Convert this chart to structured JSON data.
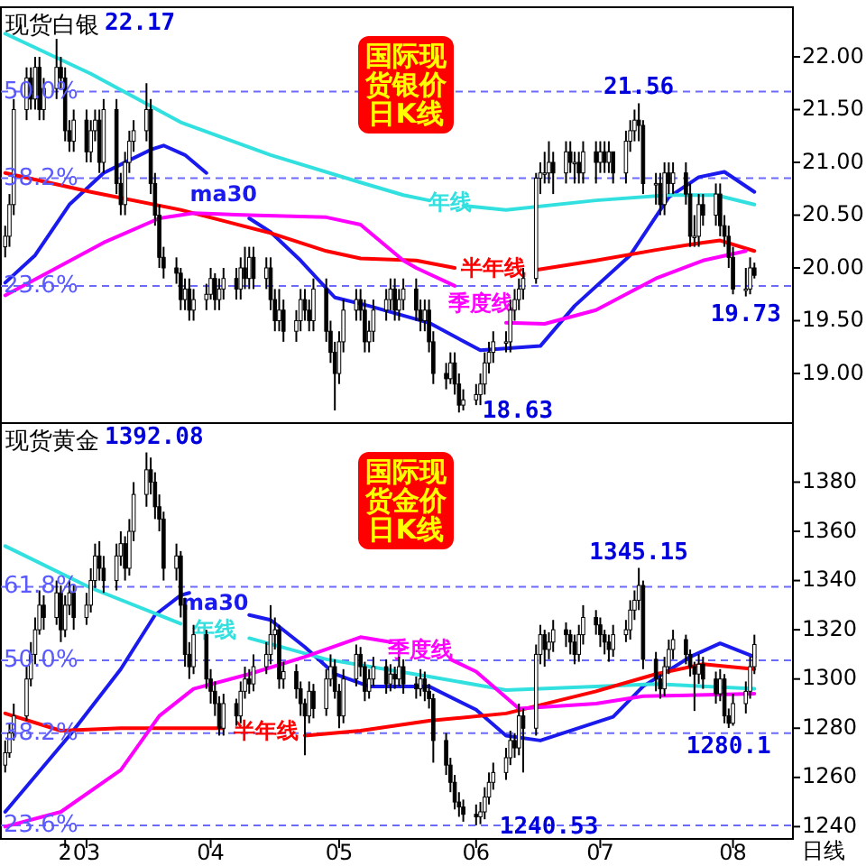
{
  "chart_data": [
    {
      "type": "candlestick",
      "title": "现货白银",
      "subtitle": "国际现货银价日K线",
      "tick_labels": "y",
      "x": [
        "--02-12",
        "--02-13",
        "--02-14",
        "--02-17",
        "--02-18",
        "--02-19",
        "--02-20",
        "--02-21",
        "--02-24",
        "--02-25",
        "--02-26",
        "--02-27",
        "--02-28",
        "--03-03",
        "--03-04",
        "--03-05",
        "--03-06",
        "--03-07",
        "--03-10",
        "--03-11",
        "--03-12",
        "--03-13",
        "--03-14",
        "--03-17",
        "--03-18",
        "--03-19",
        "--03-20",
        "--03-21",
        "--03-24",
        "--03-25",
        "--03-26",
        "--03-27",
        "--03-28",
        "--03-31",
        "--04-01",
        "--04-02",
        "--04-03",
        "--04-04",
        "--04-07",
        "--04-08",
        "--04-09",
        "--04-10",
        "--04-11",
        "--04-14",
        "--04-15",
        "--04-16",
        "--04-17",
        "--04-18",
        "--04-21",
        "--04-22",
        "--04-23",
        "--04-24",
        "--04-25",
        "--04-28",
        "--04-29",
        "--04-30",
        "--05-01",
        "--05-02",
        "--05-05",
        "--05-06",
        "--05-07",
        "--05-08",
        "--05-09",
        "--05-12",
        "--05-13",
        "--05-14",
        "--05-15",
        "--05-16",
        "--05-19",
        "--05-20",
        "--05-21",
        "--05-22",
        "--05-23",
        "--05-26",
        "--05-27",
        "--05-28",
        "--05-29",
        "--05-30",
        "--06-02",
        "--06-03",
        "--06-04",
        "--06-05",
        "--06-06",
        "--06-09",
        "--06-10",
        "--06-11",
        "--06-12",
        "--06-13",
        "--06-16",
        "--06-17",
        "--06-18",
        "--06-19",
        "--06-20",
        "--06-23",
        "--06-24",
        "--06-25",
        "--06-26",
        "--06-27",
        "--06-30",
        "--07-01",
        "--07-02",
        "--07-03",
        "--07-04",
        "--07-07",
        "--07-08",
        "--07-09",
        "--07-10",
        "--07-11",
        "--07-14",
        "--07-15",
        "--07-16",
        "--07-17",
        "--07-18",
        "--07-21",
        "--07-22",
        "--07-23",
        "--07-24",
        "--07-25",
        "--07-28",
        "--07-29",
        "--07-30",
        "--07-31",
        "--08-01",
        "--08-04",
        "--08-05",
        "--08-06"
      ],
      "ohlc": [
        [
          20.2,
          20.4,
          20.1,
          20.3
        ],
        [
          20.3,
          20.7,
          20.2,
          20.6
        ],
        [
          20.6,
          21.6,
          20.5,
          21.5
        ],
        [
          21.5,
          21.9,
          21.4,
          21.8
        ],
        [
          21.8,
          21.9,
          21.5,
          21.6
        ],
        [
          21.6,
          22.0,
          21.5,
          21.9
        ],
        [
          21.9,
          22.0,
          21.4,
          21.5
        ],
        [
          21.5,
          21.8,
          21.4,
          21.7
        ],
        [
          21.7,
          22.17,
          21.6,
          21.9
        ],
        [
          21.9,
          22.0,
          21.7,
          21.8
        ],
        [
          21.8,
          21.9,
          21.2,
          21.3
        ],
        [
          21.3,
          21.4,
          21.1,
          21.2
        ],
        [
          21.2,
          21.5,
          21.1,
          21.4
        ],
        [
          21.4,
          21.5,
          21.0,
          21.1
        ],
        [
          21.1,
          21.4,
          21.0,
          21.3
        ],
        [
          21.3,
          21.5,
          21.2,
          21.4
        ],
        [
          21.4,
          21.5,
          20.9,
          21.0
        ],
        [
          21.0,
          21.6,
          20.9,
          21.5
        ],
        [
          21.5,
          21.6,
          20.7,
          20.8
        ],
        [
          20.8,
          20.9,
          20.5,
          20.6
        ],
        [
          20.6,
          21.1,
          20.5,
          21.0
        ],
        [
          21.0,
          21.3,
          20.9,
          21.2
        ],
        [
          21.2,
          21.4,
          21.1,
          21.3
        ],
        [
          21.3,
          21.75,
          21.2,
          21.5
        ],
        [
          21.5,
          21.6,
          20.7,
          20.8
        ],
        [
          20.8,
          20.9,
          20.4,
          20.5
        ],
        [
          20.5,
          20.6,
          20.0,
          20.1
        ],
        [
          20.1,
          20.2,
          19.9,
          20.0
        ],
        [
          20.0,
          20.1,
          19.85,
          19.95
        ],
        [
          19.95,
          20.0,
          19.6,
          19.7
        ],
        [
          19.7,
          19.9,
          19.6,
          19.8
        ],
        [
          19.8,
          19.9,
          19.5,
          19.6
        ],
        [
          19.6,
          19.8,
          19.5,
          19.7
        ],
        [
          19.7,
          19.85,
          19.6,
          19.75
        ],
        [
          19.75,
          20.0,
          19.7,
          19.9
        ],
        [
          19.9,
          19.95,
          19.6,
          19.7
        ],
        [
          19.7,
          19.9,
          19.6,
          19.8
        ],
        [
          19.8,
          20.0,
          19.7,
          19.9
        ],
        [
          19.9,
          20.0,
          19.7,
          19.8
        ],
        [
          19.8,
          20.1,
          19.7,
          20.0
        ],
        [
          20.0,
          20.2,
          19.8,
          19.9
        ],
        [
          19.9,
          20.2,
          19.8,
          20.1
        ],
        [
          20.1,
          20.2,
          19.8,
          19.9
        ],
        [
          19.9,
          20.1,
          19.8,
          20.0
        ],
        [
          20.0,
          20.1,
          19.6,
          19.7
        ],
        [
          19.7,
          19.8,
          19.4,
          19.5
        ],
        [
          19.5,
          19.8,
          19.4,
          19.6
        ],
        [
          19.6,
          19.7,
          19.3,
          19.4
        ],
        [
          19.4,
          19.6,
          19.3,
          19.5
        ],
        [
          19.5,
          19.8,
          19.4,
          19.7
        ],
        [
          19.7,
          19.8,
          19.5,
          19.6
        ],
        [
          19.6,
          19.7,
          19.4,
          19.5
        ],
        [
          19.5,
          19.9,
          19.4,
          19.8
        ],
        [
          19.8,
          19.9,
          19.3,
          19.4
        ],
        [
          19.4,
          19.5,
          19.1,
          19.2
        ],
        [
          19.2,
          19.3,
          18.65,
          19.0
        ],
        [
          19.0,
          19.4,
          18.9,
          19.3
        ],
        [
          19.3,
          19.7,
          19.2,
          19.6
        ],
        [
          19.6,
          19.8,
          19.5,
          19.7
        ],
        [
          19.7,
          19.8,
          19.5,
          19.6
        ],
        [
          19.6,
          19.7,
          19.2,
          19.3
        ],
        [
          19.3,
          19.5,
          19.2,
          19.4
        ],
        [
          19.4,
          19.7,
          19.3,
          19.6
        ],
        [
          19.6,
          19.8,
          19.5,
          19.7
        ],
        [
          19.7,
          19.9,
          19.6,
          19.8
        ],
        [
          19.8,
          19.9,
          19.5,
          19.6
        ],
        [
          19.6,
          19.8,
          19.5,
          19.7
        ],
        [
          19.7,
          19.9,
          19.6,
          19.8
        ],
        [
          19.8,
          19.9,
          19.5,
          19.6
        ],
        [
          19.6,
          19.7,
          19.4,
          19.5
        ],
        [
          19.5,
          19.7,
          19.4,
          19.6
        ],
        [
          19.6,
          19.7,
          19.2,
          19.3
        ],
        [
          19.3,
          19.4,
          18.9,
          19.0
        ],
        [
          19.0,
          19.1,
          18.85,
          18.95
        ],
        [
          18.95,
          19.2,
          18.9,
          19.1
        ],
        [
          19.1,
          19.2,
          18.8,
          18.9
        ],
        [
          18.9,
          19.0,
          18.63,
          18.7
        ],
        [
          18.7,
          18.85,
          18.65,
          18.75
        ],
        [
          18.75,
          18.9,
          18.7,
          18.8
        ],
        [
          18.8,
          19.0,
          18.7,
          18.9
        ],
        [
          18.9,
          19.2,
          18.8,
          19.1
        ],
        [
          19.1,
          19.3,
          19.0,
          19.2
        ],
        [
          19.2,
          19.4,
          19.1,
          19.3
        ],
        [
          19.3,
          19.4,
          19.2,
          19.3
        ],
        [
          19.3,
          19.7,
          19.2,
          19.6
        ],
        [
          19.6,
          19.8,
          19.5,
          19.7
        ],
        [
          19.7,
          19.9,
          19.6,
          19.8
        ],
        [
          19.8,
          20.0,
          19.7,
          19.9
        ],
        [
          19.9,
          20.9,
          19.85,
          20.85
        ],
        [
          20.85,
          21.0,
          20.7,
          20.9
        ],
        [
          20.9,
          21.1,
          20.8,
          20.9
        ],
        [
          20.9,
          21.2,
          20.8,
          21.0
        ],
        [
          21.0,
          21.1,
          20.7,
          20.9
        ],
        [
          20.9,
          21.2,
          20.8,
          21.1
        ],
        [
          21.1,
          21.2,
          20.9,
          21.0
        ],
        [
          21.0,
          21.1,
          20.8,
          21.0
        ],
        [
          21.0,
          21.1,
          20.8,
          20.9
        ],
        [
          20.9,
          21.2,
          20.8,
          21.1
        ],
        [
          21.1,
          21.2,
          20.8,
          21.0
        ],
        [
          21.0,
          21.2,
          20.9,
          21.1
        ],
        [
          21.1,
          21.2,
          20.9,
          21.0
        ],
        [
          21.0,
          21.2,
          20.9,
          21.1
        ],
        [
          21.1,
          21.1,
          20.8,
          20.9
        ],
        [
          20.9,
          21.3,
          20.8,
          21.2
        ],
        [
          21.2,
          21.4,
          21.1,
          21.3
        ],
        [
          21.3,
          21.5,
          21.2,
          21.4
        ],
        [
          21.4,
          21.56,
          21.2,
          21.35
        ],
        [
          21.35,
          21.4,
          20.7,
          20.8
        ],
        [
          20.8,
          20.9,
          20.6,
          20.8
        ],
        [
          20.8,
          20.9,
          20.5,
          20.6
        ],
        [
          20.6,
          21.0,
          20.5,
          20.9
        ],
        [
          20.9,
          21.0,
          20.7,
          20.8
        ],
        [
          20.8,
          21.0,
          20.7,
          20.9
        ],
        [
          20.9,
          21.0,
          20.6,
          20.7
        ],
        [
          20.7,
          20.8,
          20.2,
          20.3
        ],
        [
          20.3,
          20.5,
          20.2,
          20.3
        ],
        [
          20.3,
          20.7,
          20.2,
          20.6
        ],
        [
          20.6,
          20.7,
          20.4,
          20.5
        ],
        [
          20.5,
          20.8,
          20.4,
          20.7
        ],
        [
          20.7,
          20.8,
          20.3,
          20.4
        ],
        [
          20.4,
          20.5,
          20.2,
          20.3
        ],
        [
          20.3,
          20.4,
          20.0,
          20.1
        ],
        [
          20.1,
          20.2,
          19.75,
          19.8
        ],
        [
          19.8,
          20.0,
          19.73,
          19.8
        ],
        [
          19.8,
          20.1,
          19.75,
          20.0
        ],
        [
          20.0,
          20.05,
          19.9,
          19.93
        ]
      ],
      "series": [
        {
          "name": "ma30",
          "type": "line",
          "color": "#1a1aee",
          "x": [
            "--02-12",
            "--02-19",
            "--02-27",
            "--03-07",
            "--03-13",
            "--03-18",
            "--03-21",
            "--03-26",
            "--03-31",
            "--04-04",
            "--04-10",
            "--04-15",
            "--04-22",
            "--04-30",
            "--05-08",
            "--05-22",
            "--06-03",
            "--06-17",
            "--06-25",
            "--07-08",
            "--07-17",
            "--07-24",
            "--07-30",
            "--08-06"
          ],
          "values": [
            19.86,
            20.12,
            20.6,
            20.9,
            21.02,
            21.12,
            21.16,
            21.07,
            20.9,
            null,
            20.47,
            20.34,
            20.07,
            19.72,
            19.64,
            19.48,
            19.22,
            19.26,
            19.64,
            20.12,
            20.67,
            20.86,
            20.91,
            20.72
          ]
        },
        {
          "name": "年线",
          "type": "line",
          "color": "#33e0e0",
          "x": [
            "--02-12",
            "--03-04",
            "--03-25",
            "--04-15",
            "--05-06",
            "--05-16",
            "--05-22",
            "--05-27",
            "--05-30",
            "--06-09",
            "--06-30",
            "--07-17",
            "--07-28",
            "--08-06"
          ],
          "values": [
            22.22,
            21.84,
            21.38,
            21.07,
            20.81,
            20.69,
            20.64,
            null,
            20.59,
            20.55,
            20.64,
            20.69,
            20.69,
            20.6
          ]
        },
        {
          "name": "半年线",
          "type": "line",
          "color": "#ff0000",
          "x": [
            "--02-12",
            "--03-04",
            "--03-25",
            "--04-15",
            "--04-28",
            "--05-06",
            "--05-19",
            "--05-28",
            "--06-06",
            "--06-16",
            "--06-30",
            "--07-14",
            "--07-25",
            "--07-29",
            "--08-06"
          ],
          "values": [
            20.9,
            20.72,
            20.55,
            20.33,
            20.16,
            20.09,
            20.07,
            20.0,
            null,
            19.98,
            20.07,
            20.17,
            20.24,
            20.26,
            20.16
          ]
        },
        {
          "name": "季度线",
          "type": "line",
          "color": "#ff00ff",
          "x": [
            "--02-12",
            "--02-24",
            "--03-07",
            "--03-20",
            "--03-28",
            "--04-10",
            "--04-28",
            "--05-06",
            "--05-16",
            "--05-19",
            "--05-28",
            "--06-03",
            "--06-09",
            "--06-18",
            "--06-30",
            "--07-14",
            "--07-25",
            "--08-04"
          ],
          "values": [
            19.74,
            20.0,
            20.24,
            20.47,
            20.52,
            20.5,
            20.48,
            20.41,
            20.07,
            20.0,
            19.83,
            null,
            19.48,
            19.47,
            19.6,
            19.9,
            20.07,
            20.16
          ]
        }
      ],
      "xlim": [
        "--02-11",
        "--08-15"
      ],
      "ylim": [
        18.53,
        22.47
      ],
      "yticks": [
        {
          "value": 19,
          "label": "19.00"
        },
        {
          "value": 19.5,
          "label": "19.50"
        },
        {
          "value": 20,
          "label": "20.00"
        },
        {
          "value": 20.5,
          "label": "20.50"
        },
        {
          "value": 21,
          "label": "21.00"
        },
        {
          "value": 21.5,
          "label": "21.50"
        },
        {
          "value": 22,
          "label": "22.00"
        }
      ],
      "ref_lines": [
        {
          "axis": "y",
          "value": 21.67,
          "color": "#6a6aff",
          "line_style": "dashed"
        },
        {
          "axis": "y",
          "value": 20.85,
          "color": "#6a6aff",
          "line_style": "dashed"
        },
        {
          "axis": "y",
          "value": 19.83,
          "color": "#6a6aff",
          "line_style": "dashed"
        }
      ],
      "annotations": [
        {
          "text": "50.0%",
          "y": 21.67
        },
        {
          "text": "38.2%",
          "y": 20.85
        },
        {
          "text": "23.6%",
          "y": 19.83
        },
        {
          "text": "22.17",
          "x": "--02-24",
          "y": 22.17
        },
        {
          "text": "21.56",
          "x": "--07-10",
          "y": 21.56
        },
        {
          "text": "18.63",
          "x": "--05-29",
          "y": 18.63
        },
        {
          "text": "19.73",
          "x": "--08-04",
          "y": 19.73
        }
      ]
    },
    {
      "type": "candlestick",
      "title": "现货黄金",
      "subtitle": "国际现货金价日K线",
      "xlabel": "日线",
      "x": [
        "--02-12",
        "--02-13",
        "--02-14",
        "--02-17",
        "--02-18",
        "--02-19",
        "--02-20",
        "--02-21",
        "--02-24",
        "--02-25",
        "--02-26",
        "--02-27",
        "--02-28",
        "--03-03",
        "--03-04",
        "--03-05",
        "--03-06",
        "--03-07",
        "--03-10",
        "--03-11",
        "--03-12",
        "--03-13",
        "--03-14",
        "--03-17",
        "--03-18",
        "--03-19",
        "--03-20",
        "--03-21",
        "--03-24",
        "--03-25",
        "--03-26",
        "--03-27",
        "--03-28",
        "--03-31",
        "--04-01",
        "--04-02",
        "--04-03",
        "--04-04",
        "--04-07",
        "--04-08",
        "--04-09",
        "--04-10",
        "--04-11",
        "--04-14",
        "--04-15",
        "--04-16",
        "--04-17",
        "--04-18",
        "--04-21",
        "--04-22",
        "--04-23",
        "--04-24",
        "--04-25",
        "--04-28",
        "--04-29",
        "--04-30",
        "--05-01",
        "--05-02",
        "--05-05",
        "--05-06",
        "--05-07",
        "--05-08",
        "--05-09",
        "--05-12",
        "--05-13",
        "--05-14",
        "--05-15",
        "--05-16",
        "--05-19",
        "--05-20",
        "--05-21",
        "--05-22",
        "--05-23",
        "--05-26",
        "--05-27",
        "--05-28",
        "--05-29",
        "--05-30",
        "--06-02",
        "--06-03",
        "--06-04",
        "--06-05",
        "--06-06",
        "--06-09",
        "--06-10",
        "--06-11",
        "--06-12",
        "--06-13",
        "--06-16",
        "--06-17",
        "--06-18",
        "--06-19",
        "--06-20",
        "--06-23",
        "--06-24",
        "--06-25",
        "--06-26",
        "--06-27",
        "--06-30",
        "--07-01",
        "--07-02",
        "--07-03",
        "--07-04",
        "--07-07",
        "--07-08",
        "--07-09",
        "--07-10",
        "--07-11",
        "--07-14",
        "--07-15",
        "--07-16",
        "--07-17",
        "--07-18",
        "--07-21",
        "--07-22",
        "--07-23",
        "--07-24",
        "--07-25",
        "--07-28",
        "--07-29",
        "--07-30",
        "--07-31",
        "--08-01",
        "--08-04",
        "--08-05",
        "--08-06"
      ],
      "ohlc": [
        [
          1265,
          1275,
          1262,
          1270
        ],
        [
          1270,
          1282,
          1268,
          1278
        ],
        [
          1278,
          1290,
          1275,
          1285
        ],
        [
          1285,
          1305,
          1283,
          1300
        ],
        [
          1300,
          1315,
          1297,
          1310
        ],
        [
          1310,
          1325,
          1306,
          1320
        ],
        [
          1320,
          1336,
          1318,
          1330
        ],
        [
          1330,
          1334,
          1320,
          1325
        ],
        [
          1325,
          1340,
          1322,
          1335
        ],
        [
          1335,
          1338,
          1315,
          1320
        ],
        [
          1320,
          1334,
          1317,
          1330
        ],
        [
          1330,
          1340,
          1326,
          1335
        ],
        [
          1335,
          1338,
          1320,
          1325
        ],
        [
          1325,
          1335,
          1322,
          1330
        ],
        [
          1330,
          1345,
          1327,
          1340
        ],
        [
          1340,
          1355,
          1337,
          1350
        ],
        [
          1350,
          1356,
          1340,
          1345
        ],
        [
          1345,
          1350,
          1335,
          1340
        ],
        [
          1340,
          1355,
          1336,
          1350
        ],
        [
          1350,
          1360,
          1346,
          1355
        ],
        [
          1355,
          1358,
          1340,
          1345
        ],
        [
          1345,
          1365,
          1342,
          1360
        ],
        [
          1360,
          1380,
          1356,
          1375
        ],
        [
          1375,
          1392.08,
          1370,
          1385
        ],
        [
          1385,
          1390,
          1375,
          1380
        ],
        [
          1380,
          1384,
          1365,
          1370
        ],
        [
          1370,
          1375,
          1360,
          1365
        ],
        [
          1365,
          1368,
          1340,
          1345
        ],
        [
          1345,
          1355,
          1340,
          1350
        ],
        [
          1350,
          1352,
          1325,
          1330
        ],
        [
          1330,
          1333,
          1305,
          1310
        ],
        [
          1310,
          1315,
          1300,
          1305
        ],
        [
          1305,
          1322,
          1302,
          1318
        ],
        [
          1318,
          1320,
          1296,
          1300
        ],
        [
          1300,
          1304,
          1290,
          1295
        ],
        [
          1295,
          1299,
          1285,
          1290
        ],
        [
          1290,
          1293,
          1277,
          1280
        ],
        [
          1280,
          1294,
          1277,
          1290
        ],
        [
          1290,
          1292,
          1281,
          1285
        ],
        [
          1285,
          1299,
          1282,
          1295
        ],
        [
          1295,
          1305,
          1292,
          1300
        ],
        [
          1300,
          1304,
          1294,
          1298
        ],
        [
          1298,
          1310,
          1295,
          1305
        ],
        [
          1305,
          1315,
          1302,
          1310
        ],
        [
          1310,
          1330,
          1306,
          1318
        ],
        [
          1318,
          1325,
          1312,
          1320
        ],
        [
          1320,
          1322,
          1296,
          1300
        ],
        [
          1300,
          1307,
          1296,
          1303
        ],
        [
          1303,
          1306,
          1292,
          1296
        ],
        [
          1296,
          1299,
          1285,
          1290
        ],
        [
          1290,
          1292,
          1269,
          1285
        ],
        [
          1285,
          1299,
          1282,
          1295
        ],
        [
          1295,
          1298,
          1284,
          1288
        ],
        [
          1288,
          1304,
          1285,
          1300
        ],
        [
          1300,
          1310,
          1297,
          1305
        ],
        [
          1305,
          1308,
          1292,
          1295
        ],
        [
          1295,
          1298,
          1280,
          1285
        ],
        [
          1285,
          1304,
          1282,
          1300
        ],
        [
          1300,
          1314,
          1297,
          1310
        ],
        [
          1310,
          1313,
          1301,
          1305
        ],
        [
          1305,
          1307,
          1291,
          1295
        ],
        [
          1295,
          1304,
          1292,
          1300
        ],
        [
          1300,
          1309,
          1297,
          1305
        ],
        [
          1305,
          1308,
          1294,
          1298
        ],
        [
          1298,
          1306,
          1295,
          1302
        ],
        [
          1302,
          1305,
          1296,
          1300
        ],
        [
          1300,
          1309,
          1297,
          1305
        ],
        [
          1305,
          1308,
          1294,
          1298
        ],
        [
          1298,
          1301,
          1292,
          1296
        ],
        [
          1296,
          1304,
          1293,
          1300
        ],
        [
          1300,
          1303,
          1291,
          1295
        ],
        [
          1295,
          1298,
          1288,
          1292
        ],
        [
          1292,
          1294,
          1266,
          1275
        ],
        [
          1275,
          1278,
          1261,
          1265
        ],
        [
          1265,
          1268,
          1254,
          1258
        ],
        [
          1258,
          1261,
          1247,
          1250
        ],
        [
          1250,
          1254,
          1244,
          1248
        ],
        [
          1248,
          1251,
          1242,
          1245
        ],
        [
          1245,
          1249,
          1240.53,
          1244
        ],
        [
          1244,
          1250,
          1241,
          1246
        ],
        [
          1246,
          1256,
          1243,
          1252
        ],
        [
          1252,
          1262,
          1249,
          1258
        ],
        [
          1258,
          1266,
          1255,
          1262
        ],
        [
          1262,
          1272,
          1259,
          1268
        ],
        [
          1268,
          1279,
          1265,
          1275
        ],
        [
          1275,
          1278,
          1268,
          1272
        ],
        [
          1272,
          1290,
          1269,
          1285
        ],
        [
          1285,
          1288,
          1262,
          1280
        ],
        [
          1280,
          1314,
          1277,
          1310
        ],
        [
          1310,
          1322,
          1306,
          1318
        ],
        [
          1318,
          1320,
          1305,
          1312
        ],
        [
          1312,
          1319,
          1308,
          1315
        ],
        [
          1315,
          1324,
          1311,
          1320
        ],
        [
          1320,
          1323,
          1313,
          1318
        ],
        [
          1318,
          1320,
          1310,
          1315
        ],
        [
          1315,
          1318,
          1306,
          1310
        ],
        [
          1310,
          1322,
          1307,
          1318
        ],
        [
          1318,
          1330,
          1314,
          1325
        ],
        [
          1325,
          1328,
          1318,
          1322
        ],
        [
          1322,
          1325,
          1313,
          1318
        ],
        [
          1318,
          1320,
          1310,
          1315
        ],
        [
          1315,
          1318,
          1307,
          1312
        ],
        [
          1312,
          1322,
          1309,
          1318
        ],
        [
          1318,
          1324,
          1315,
          1320
        ],
        [
          1320,
          1332,
          1316,
          1328
        ],
        [
          1328,
          1336,
          1324,
          1332
        ],
        [
          1332,
          1345.15,
          1328,
          1338
        ],
        [
          1338,
          1340,
          1304,
          1308
        ],
        [
          1308,
          1311,
          1295,
          1300
        ],
        [
          1300,
          1302,
          1292,
          1296
        ],
        [
          1296,
          1309,
          1293,
          1305
        ],
        [
          1305,
          1316,
          1302,
          1312
        ],
        [
          1312,
          1320,
          1308,
          1316
        ],
        [
          1316,
          1318,
          1306,
          1310
        ],
        [
          1310,
          1312,
          1301,
          1305
        ],
        [
          1305,
          1307,
          1287,
          1302
        ],
        [
          1302,
          1310,
          1298,
          1306
        ],
        [
          1306,
          1309,
          1296,
          1300
        ],
        [
          1300,
          1303,
          1290,
          1294
        ],
        [
          1294,
          1304,
          1291,
          1300
        ],
        [
          1300,
          1302,
          1282,
          1285
        ],
        [
          1285,
          1288,
          1280.1,
          1282
        ],
        [
          1282,
          1294,
          1281,
          1290
        ],
        [
          1290,
          1299,
          1286,
          1295
        ],
        [
          1295,
          1309,
          1292,
          1305
        ],
        [
          1305,
          1318,
          1302,
          1314
        ]
      ],
      "series": [
        {
          "name": "ma30",
          "type": "line",
          "color": "#1a1aee",
          "x": [
            "--02-12",
            "--02-27",
            "--03-11",
            "--03-19",
            "--03-25",
            "--03-27",
            "--04-02",
            "--04-10",
            "--04-15",
            "--04-23",
            "--04-30",
            "--05-08",
            "--05-22",
            "--06-02",
            "--06-09",
            "--06-17",
            "--07-04",
            "--07-11",
            "--07-22",
            "--07-29",
            "--08-06"
          ],
          "values": [
            1246,
            1277,
            1304,
            1326,
            1334,
            1335,
            null,
            1326,
            1324,
            1313,
            1302,
            1297,
            1297,
            1287.5,
            1277,
            1275,
            1284.6,
            1297,
            1309,
            1314.5,
            1309
          ]
        },
        {
          "name": "年线",
          "type": "line",
          "color": "#33e0e0",
          "x": [
            "--02-12",
            "--03-04",
            "--03-25",
            "--04-02",
            "--04-10",
            "--04-28",
            "--05-22",
            "--06-09",
            "--06-30",
            "--07-14",
            "--08-06"
          ],
          "values": [
            1354,
            1337,
            1322.5,
            null,
            1316.6,
            1308,
            1301,
            1295.5,
            1297,
            1298,
            1296
          ]
        },
        {
          "name": "半年线",
          "type": "line",
          "color": "#ff0000",
          "x": [
            "--02-12",
            "--02-25",
            "--03-11",
            "--04-04",
            "--04-14",
            "--04-23",
            "--05-06",
            "--05-22",
            "--06-09",
            "--06-30",
            "--07-14",
            "--07-25",
            "--08-06"
          ],
          "values": [
            1286,
            1279,
            1280,
            1280,
            null,
            1277,
            1279,
            1283,
            1286,
            1295,
            1302,
            1306,
            1304
          ]
        },
        {
          "name": "季度线",
          "type": "line",
          "color": "#ff00ff",
          "x": [
            "--02-12",
            "--02-25",
            "--03-11",
            "--03-20",
            "--03-28",
            "--04-10",
            "--04-23",
            "--05-06",
            "--05-13",
            "--05-20",
            "--05-27",
            "--06-02",
            "--06-12",
            "--06-30",
            "--07-11",
            "--08-06"
          ],
          "values": [
            1240,
            1246,
            1263,
            1285,
            1296,
            1302,
            1309,
            1317,
            1315,
            null,
            1308,
            1303,
            1288,
            1290,
            1293,
            1294
          ]
        }
      ],
      "xlim": [
        "--02-11",
        "--08-15"
      ],
      "ylim": [
        1235,
        1404
      ],
      "xticks": [
        {
          "value": "--02-26",
          "label": "2"
        },
        {
          "value": "--03-03",
          "label": "03"
        },
        {
          "value": "--04-01",
          "label": "04"
        },
        {
          "value": "--05-01",
          "label": "05"
        },
        {
          "value": "--06-02",
          "label": "06"
        },
        {
          "value": "--07-01",
          "label": "07"
        },
        {
          "value": "--08-01",
          "label": "08"
        }
      ],
      "yticks": [
        1240,
        1260,
        1280,
        1300,
        1320,
        1340,
        1360,
        1380
      ],
      "ref_lines": [
        {
          "axis": "y",
          "value": 1337.5,
          "color": "#6a6aff",
          "line_style": "dashed"
        },
        {
          "axis": "y",
          "value": 1307.6,
          "color": "#6a6aff",
          "line_style": "dashed"
        },
        {
          "axis": "y",
          "value": 1278,
          "color": "#6a6aff",
          "line_style": "dashed"
        },
        {
          "axis": "y",
          "value": 1240.5,
          "color": "#6a6aff",
          "line_style": "dashed"
        }
      ],
      "annotations": [
        {
          "text": "61.8%",
          "y": 1337.5
        },
        {
          "text": "50.0%",
          "y": 1307.6
        },
        {
          "text": "38.2%",
          "y": 1278
        },
        {
          "text": "23.6%",
          "y": 1240.5
        },
        {
          "text": "1392.08",
          "x": "--03-17",
          "y": 1392.08
        },
        {
          "text": "1345.15",
          "x": "--07-10",
          "y": 1345.15
        },
        {
          "text": "1240.53",
          "x": "--06-02",
          "y": 1240.53
        },
        {
          "text": "1280.1",
          "x": "--07-31",
          "y": 1280.1
        }
      ]
    }
  ]
}
